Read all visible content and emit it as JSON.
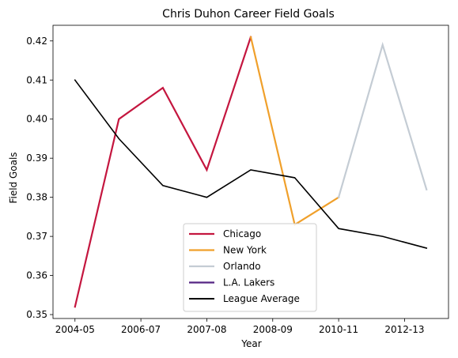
{
  "chart_data": {
    "type": "line",
    "title": "Chris Duhon Career Field Goals",
    "xlabel": "Year",
    "ylabel": "Field Goals",
    "x_tick_labels": [
      "2004-05",
      "2006-07",
      "2007-08",
      "2008-09",
      "2010-11",
      "2012-13"
    ],
    "y_ticks": [
      0.35,
      0.36,
      0.37,
      0.38,
      0.39,
      0.4,
      0.41,
      0.42
    ],
    "y_tick_labels": [
      "0.35",
      "0.36",
      "0.37",
      "0.38",
      "0.39",
      "0.40",
      "0.41",
      "0.42"
    ],
    "ylim": [
      0.349,
      0.424
    ],
    "xlim": [
      -0.5,
      8.5
    ],
    "legend_position": "lower center",
    "grid": false,
    "series": [
      {
        "name": "Chicago",
        "color": "#c4163f",
        "points": [
          [
            0,
            0.352
          ],
          [
            1,
            0.4
          ],
          [
            2,
            0.408
          ],
          [
            3,
            0.387
          ],
          [
            4,
            0.421
          ]
        ]
      },
      {
        "name": "New York",
        "color": "#f0a02b",
        "points": [
          [
            4,
            0.421
          ],
          [
            5,
            0.373
          ],
          [
            6,
            0.38
          ]
        ]
      },
      {
        "name": "Orlando",
        "color": "#c4ccd4",
        "points": [
          [
            6,
            0.38
          ],
          [
            7,
            0.419
          ],
          [
            8,
            0.382
          ]
        ]
      },
      {
        "name": "L.A. Lakers",
        "color": "#552583",
        "points": []
      },
      {
        "name": "League Average",
        "color": "#000000",
        "points": [
          [
            0,
            0.41
          ],
          [
            1,
            0.395
          ],
          [
            2,
            0.383
          ],
          [
            3,
            0.38
          ],
          [
            4,
            0.387
          ],
          [
            5,
            0.385
          ],
          [
            6,
            0.372
          ],
          [
            7,
            0.37
          ],
          [
            8,
            0.367
          ]
        ]
      }
    ]
  }
}
